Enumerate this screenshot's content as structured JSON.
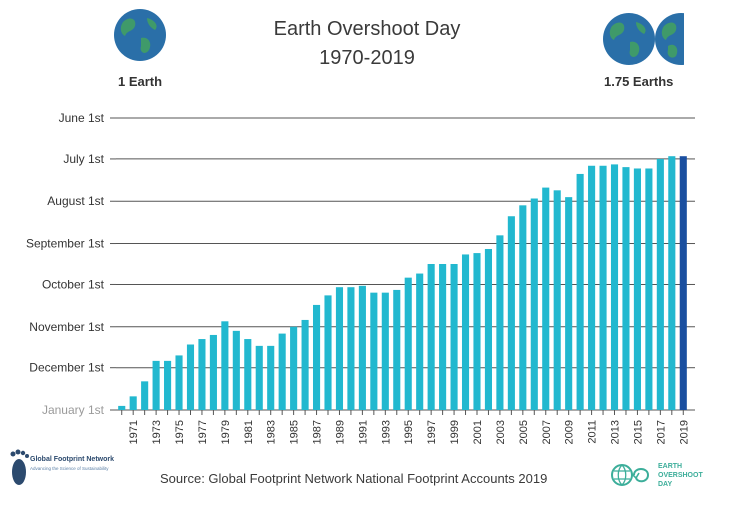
{
  "title_line1": "Earth Overshoot Day",
  "title_line2": "1970-2019",
  "left_label": "1 Earth",
  "right_label": "1.75 Earths",
  "source": "Source: Global Footprint Network National Footprint Accounts 2019",
  "logo_gfn": {
    "name": "Global Footprint Network",
    "tagline": "Advancing the Science of Sustainability"
  },
  "logo_eod": {
    "line1": "EARTH",
    "line2": "OVERSHOOT",
    "line3": "DAY"
  },
  "colors": {
    "bar": "#22b8cf",
    "highlight": "#1a4fa0",
    "axis": "#555555",
    "globe_ocean": "#2a6fa8",
    "globe_land": "#3f9a6a"
  },
  "chart_data": {
    "type": "bar",
    "title": "Earth Overshoot Day 1970-2019",
    "xlabel": "",
    "ylabel": "",
    "y_axis_note": "Day of year, reversed: January 1st at bottom, June 1st at top",
    "y_ticks": [
      {
        "label": "June 1st",
        "day": 152
      },
      {
        "label": "July 1st",
        "day": 182
      },
      {
        "label": "August 1st",
        "day": 213
      },
      {
        "label": "September 1st",
        "day": 244
      },
      {
        "label": "October 1st",
        "day": 274
      },
      {
        "label": "November 1st",
        "day": 305
      },
      {
        "label": "December 1st",
        "day": 335
      },
      {
        "label": "January 1st",
        "day": 366
      }
    ],
    "x_tick_labels": [
      "1971",
      "1973",
      "1975",
      "1977",
      "1979",
      "1981",
      "1983",
      "1985",
      "1987",
      "1989",
      "1991",
      "1993",
      "1995",
      "1997",
      "1999",
      "2001",
      "2003",
      "2005",
      "2007",
      "2009",
      "2011",
      "2013",
      "2015",
      "2017",
      "2019"
    ],
    "categories": [
      1970,
      1971,
      1972,
      1973,
      1974,
      1975,
      1976,
      1977,
      1978,
      1979,
      1980,
      1981,
      1982,
      1983,
      1984,
      1985,
      1986,
      1987,
      1988,
      1989,
      1990,
      1991,
      1992,
      1993,
      1994,
      1995,
      1996,
      1997,
      1998,
      1999,
      2000,
      2001,
      2002,
      2003,
      2004,
      2005,
      2006,
      2007,
      2008,
      2009,
      2010,
      2011,
      2012,
      2013,
      2014,
      2015,
      2016,
      2017,
      2018,
      2019
    ],
    "values": [
      363,
      356,
      345,
      330,
      330,
      326,
      318,
      314,
      311,
      301,
      308,
      314,
      319,
      319,
      310,
      305,
      300,
      289,
      282,
      276,
      276,
      275,
      280,
      280,
      278,
      269,
      266,
      259,
      259,
      259,
      252,
      251,
      248,
      238,
      224,
      216,
      211,
      203,
      205,
      210,
      193,
      187,
      187,
      186,
      188,
      189,
      189,
      182,
      180,
      180
    ],
    "highlight_index": 49
  }
}
